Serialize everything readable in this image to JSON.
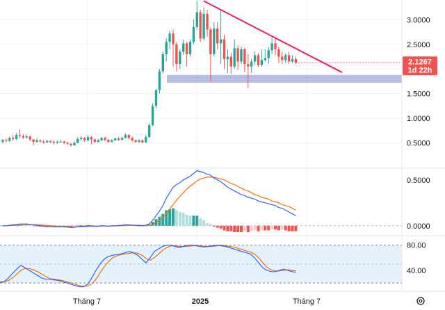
{
  "chart_data": [
    {
      "type": "candlestick",
      "title": "",
      "yscale": "linear",
      "ylim": [
        0.0,
        3.4
      ],
      "y_ticks": [
        "3.0000",
        "2.5000",
        "2.0000",
        "1.5000",
        "1.0000",
        "0.5000"
      ],
      "y_tick_values": [
        3.0,
        2.5,
        2.0,
        1.5,
        1.0,
        0.5
      ],
      "x_ticks": [
        "Tháng 7",
        "2025",
        "Tháng 7"
      ],
      "last_price": "2.1267",
      "countdown": "1d 22h",
      "colors": {
        "up": "#26a69a",
        "down": "#ef5350",
        "trendline": "#e91e63",
        "support_zone": "#9fa8da"
      },
      "support_zone": [
        1.72,
        1.88
      ],
      "trendline": {
        "start": [
          0,
          3.38
        ],
        "end": [
          1,
          1.93
        ]
      },
      "candles": [
        [
          0.52,
          0.56,
          0.49,
          0.58
        ],
        [
          0.56,
          0.54,
          0.51,
          0.59
        ],
        [
          0.54,
          0.6,
          0.52,
          0.63
        ],
        [
          0.6,
          0.58,
          0.55,
          0.65
        ],
        [
          0.58,
          0.66,
          0.56,
          0.7
        ],
        [
          0.66,
          0.64,
          0.6,
          0.78
        ],
        [
          0.64,
          0.61,
          0.58,
          0.68
        ],
        [
          0.61,
          0.63,
          0.59,
          0.67
        ],
        [
          0.63,
          0.57,
          0.53,
          0.65
        ],
        [
          0.57,
          0.52,
          0.45,
          0.58
        ],
        [
          0.52,
          0.55,
          0.5,
          0.59
        ],
        [
          0.55,
          0.53,
          0.5,
          0.57
        ],
        [
          0.53,
          0.51,
          0.48,
          0.56
        ],
        [
          0.51,
          0.54,
          0.5,
          0.56
        ],
        [
          0.54,
          0.52,
          0.49,
          0.55
        ],
        [
          0.52,
          0.5,
          0.47,
          0.55
        ],
        [
          0.5,
          0.52,
          0.48,
          0.55
        ],
        [
          0.52,
          0.53,
          0.5,
          0.56
        ],
        [
          0.53,
          0.5,
          0.47,
          0.54
        ],
        [
          0.5,
          0.48,
          0.45,
          0.52
        ],
        [
          0.48,
          0.45,
          0.42,
          0.5
        ],
        [
          0.45,
          0.5,
          0.44,
          0.53
        ],
        [
          0.5,
          0.58,
          0.49,
          0.62
        ],
        [
          0.58,
          0.6,
          0.55,
          0.64
        ],
        [
          0.6,
          0.55,
          0.52,
          0.62
        ],
        [
          0.55,
          0.62,
          0.54,
          0.66
        ],
        [
          0.62,
          0.57,
          0.47,
          0.64
        ],
        [
          0.57,
          0.52,
          0.5,
          0.59
        ],
        [
          0.52,
          0.55,
          0.51,
          0.58
        ],
        [
          0.55,
          0.6,
          0.54,
          0.62
        ],
        [
          0.6,
          0.56,
          0.53,
          0.63
        ],
        [
          0.56,
          0.52,
          0.5,
          0.58
        ],
        [
          0.52,
          0.55,
          0.51,
          0.58
        ],
        [
          0.55,
          0.59,
          0.54,
          0.61
        ],
        [
          0.59,
          0.56,
          0.54,
          0.62
        ],
        [
          0.56,
          0.6,
          0.55,
          0.63
        ],
        [
          0.6,
          0.66,
          0.59,
          0.69
        ],
        [
          0.66,
          0.6,
          0.57,
          0.68
        ],
        [
          0.6,
          0.55,
          0.52,
          0.63
        ],
        [
          0.55,
          0.52,
          0.5,
          0.57
        ],
        [
          0.52,
          0.55,
          0.5,
          0.58
        ],
        [
          0.55,
          0.51,
          0.49,
          0.57
        ],
        [
          0.51,
          0.62,
          0.5,
          0.66
        ],
        [
          0.62,
          0.86,
          0.6,
          0.9
        ],
        [
          0.86,
          1.25,
          0.84,
          1.3
        ],
        [
          1.25,
          1.57,
          1.2,
          1.6
        ],
        [
          1.57,
          1.95,
          1.5,
          2.0
        ],
        [
          1.95,
          2.3,
          1.9,
          2.35
        ],
        [
          2.3,
          2.55,
          2.15,
          2.62
        ],
        [
          2.55,
          2.72,
          2.4,
          2.78
        ],
        [
          2.72,
          2.5,
          2.05,
          2.8
        ],
        [
          2.5,
          2.1,
          1.95,
          2.55
        ],
        [
          2.1,
          2.35,
          2.0,
          2.4
        ],
        [
          2.35,
          2.52,
          2.28,
          2.6
        ],
        [
          2.52,
          2.3,
          2.05,
          2.55
        ],
        [
          2.3,
          2.55,
          2.25,
          2.6
        ],
        [
          2.55,
          2.85,
          2.5,
          3.0
        ],
        [
          2.85,
          3.15,
          2.8,
          3.38
        ],
        [
          3.15,
          2.62,
          2.55,
          3.2
        ],
        [
          2.62,
          3.12,
          2.58,
          3.25
        ],
        [
          3.12,
          2.8,
          2.65,
          3.2
        ],
        [
          2.8,
          2.3,
          1.75,
          2.85
        ],
        [
          2.3,
          2.82,
          2.25,
          2.95
        ],
        [
          2.82,
          2.52,
          2.4,
          2.95
        ],
        [
          2.52,
          2.6,
          2.1,
          3.18
        ],
        [
          2.6,
          2.2,
          2.0,
          2.7
        ],
        [
          2.2,
          2.25,
          1.92,
          2.4
        ],
        [
          2.25,
          2.05,
          1.9,
          2.33
        ],
        [
          2.05,
          2.42,
          2.0,
          2.6
        ],
        [
          2.42,
          2.15,
          1.98,
          2.48
        ],
        [
          2.15,
          2.4,
          2.1,
          2.45
        ],
        [
          2.4,
          2.1,
          1.93,
          2.43
        ],
        [
          2.1,
          2.05,
          1.62,
          2.3
        ],
        [
          2.05,
          2.15,
          1.92,
          2.2
        ],
        [
          2.15,
          2.28,
          2.08,
          2.35
        ],
        [
          2.28,
          2.08,
          2.05,
          2.32
        ],
        [
          2.08,
          2.18,
          2.05,
          2.4
        ],
        [
          2.18,
          2.22,
          2.15,
          2.4
        ],
        [
          2.22,
          2.38,
          2.1,
          2.45
        ],
        [
          2.38,
          2.52,
          2.3,
          2.65
        ],
        [
          2.52,
          2.4,
          2.28,
          2.62
        ],
        [
          2.4,
          2.25,
          2.12,
          2.45
        ],
        [
          2.25,
          2.18,
          2.1,
          2.35
        ],
        [
          2.18,
          2.28,
          2.12,
          2.32
        ],
        [
          2.28,
          2.15,
          2.1,
          2.35
        ],
        [
          2.15,
          2.2,
          2.12,
          2.28
        ],
        [
          2.2,
          2.13,
          2.1,
          2.25
        ]
      ]
    },
    {
      "type": "macd",
      "title": "",
      "ylim": [
        -0.1,
        0.62
      ],
      "y_ticks": [
        "0.5000",
        "0.0000"
      ],
      "y_tick_values": [
        0.5,
        0.0
      ],
      "colors": {
        "macd": "#2962ff",
        "signal": "#ff6d00",
        "hist_up_strong": "#26a69a",
        "hist_up_weak": "#b2dfdb",
        "hist_down_strong": "#ef5350",
        "hist_down_weak": "#ffcdd2"
      },
      "macd": [
        0.0,
        0.0,
        0.005,
        0.01,
        0.015,
        0.02,
        0.02,
        0.02,
        0.015,
        0.01,
        0.005,
        0.0,
        -0.005,
        -0.01,
        -0.01,
        -0.012,
        -0.012,
        -0.01,
        -0.012,
        -0.015,
        -0.02,
        -0.018,
        -0.01,
        -0.005,
        -0.005,
        0.0,
        0.0,
        -0.005,
        -0.005,
        0.0,
        0.0,
        -0.005,
        0.0,
        0.0,
        0.003,
        0.005,
        0.01,
        0.01,
        0.008,
        0.005,
        0.003,
        0.0,
        0.005,
        0.02,
        0.06,
        0.11,
        0.16,
        0.22,
        0.3,
        0.36,
        0.42,
        0.45,
        0.47,
        0.5,
        0.52,
        0.54,
        0.57,
        0.6,
        0.59,
        0.58,
        0.56,
        0.55,
        0.52,
        0.5,
        0.48,
        0.45,
        0.42,
        0.4,
        0.38,
        0.36,
        0.34,
        0.33,
        0.31,
        0.3,
        0.29,
        0.27,
        0.26,
        0.25,
        0.24,
        0.23,
        0.22,
        0.2,
        0.19,
        0.17,
        0.15,
        0.13,
        0.11
      ],
      "signal": [
        0.0,
        0.0,
        0.002,
        0.004,
        0.006,
        0.009,
        0.011,
        0.013,
        0.013,
        0.012,
        0.011,
        0.009,
        0.006,
        0.003,
        0.0,
        -0.002,
        -0.004,
        -0.005,
        -0.007,
        -0.008,
        -0.01,
        -0.012,
        -0.012,
        -0.011,
        -0.01,
        -0.008,
        -0.006,
        -0.006,
        -0.005,
        -0.004,
        -0.003,
        -0.003,
        -0.003,
        -0.002,
        -0.001,
        0.0,
        0.002,
        0.004,
        0.005,
        0.005,
        0.005,
        0.004,
        0.004,
        0.007,
        0.018,
        0.036,
        0.06,
        0.09,
        0.13,
        0.18,
        0.23,
        0.28,
        0.32,
        0.36,
        0.4,
        0.43,
        0.46,
        0.49,
        0.51,
        0.52,
        0.53,
        0.53,
        0.53,
        0.52,
        0.51,
        0.5,
        0.48,
        0.46,
        0.45,
        0.43,
        0.41,
        0.39,
        0.38,
        0.36,
        0.34,
        0.33,
        0.31,
        0.3,
        0.29,
        0.27,
        0.26,
        0.25,
        0.23,
        0.22,
        0.21,
        0.19,
        0.17
      ],
      "histogram": [
        0.0,
        0.0,
        0.003,
        0.006,
        0.009,
        0.011,
        0.009,
        0.007,
        0.002,
        -0.002,
        -0.006,
        -0.009,
        -0.011,
        -0.013,
        -0.01,
        -0.01,
        -0.008,
        -0.005,
        -0.005,
        -0.007,
        -0.01,
        -0.006,
        0.002,
        0.006,
        0.005,
        0.008,
        0.006,
        0.001,
        0.0,
        0.004,
        0.003,
        -0.002,
        0.003,
        0.002,
        0.004,
        0.005,
        0.008,
        0.006,
        0.003,
        0.0,
        -0.002,
        -0.004,
        0.001,
        0.013,
        0.042,
        0.074,
        0.1,
        0.13,
        0.17,
        0.18,
        0.19,
        0.17,
        0.15,
        0.14,
        0.12,
        0.11,
        0.11,
        0.11,
        0.08,
        0.06,
        0.03,
        0.02,
        -0.01,
        -0.02,
        -0.03,
        -0.05,
        -0.06,
        -0.06,
        -0.07,
        -0.07,
        -0.07,
        -0.06,
        -0.07,
        -0.06,
        -0.05,
        -0.06,
        -0.05,
        -0.05,
        -0.05,
        -0.04,
        -0.04,
        -0.05,
        -0.04,
        -0.05,
        -0.06,
        -0.06,
        -0.06
      ]
    },
    {
      "type": "stochastic_rsi",
      "title": "",
      "ylim": [
        8,
        94
      ],
      "y_ticks": [
        "80.00",
        "40.00"
      ],
      "y_tick_values": [
        80,
        40
      ],
      "bands": {
        "upper": 80,
        "middle": 50,
        "lower": 20
      },
      "colors": {
        "k": "#2962ff",
        "d": "#ff6d00",
        "band_fill": "#e3f2fd",
        "band_line": "#787b86"
      },
      "k": [
        20,
        22,
        28,
        35,
        42,
        48,
        44,
        40,
        36,
        32,
        28,
        26,
        26,
        25,
        24,
        22,
        20,
        18,
        16,
        14,
        14,
        18,
        28,
        40,
        50,
        58,
        62,
        64,
        65,
        66,
        68,
        70,
        68,
        64,
        58,
        52,
        60,
        70,
        74,
        78,
        80,
        80,
        78,
        76,
        78,
        80,
        80,
        79,
        78,
        77,
        78,
        79,
        80,
        79,
        78,
        76,
        74,
        72,
        70,
        68,
        66,
        60,
        52,
        44,
        40,
        38,
        38,
        40,
        42,
        40,
        38,
        37
      ],
      "d": [
        22,
        22,
        24,
        28,
        34,
        40,
        43,
        43,
        41,
        38,
        34,
        30,
        27,
        26,
        25,
        24,
        22,
        20,
        18,
        16,
        15,
        15,
        19,
        26,
        36,
        46,
        54,
        60,
        63,
        65,
        66,
        67,
        68,
        67,
        64,
        59,
        56,
        60,
        66,
        72,
        76,
        79,
        79,
        78,
        78,
        78,
        79,
        80,
        79,
        78,
        78,
        78,
        79,
        80,
        79,
        78,
        77,
        75,
        73,
        71,
        69,
        66,
        60,
        52,
        45,
        41,
        39,
        39,
        40,
        41,
        40,
        39
      ]
    }
  ]
}
